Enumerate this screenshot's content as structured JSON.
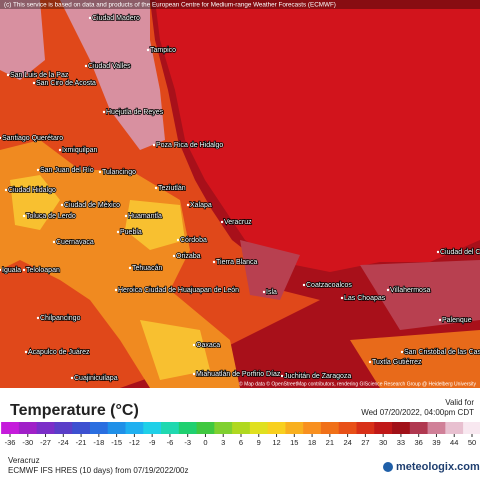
{
  "header": {
    "attribution": "(c) This service is based on data and products of the European Centre for Medium-range Weather Forecasts (ECMWF)"
  },
  "map": {
    "credit": "© Map data © OpenStreetMap contributors, rendering GIScience Research Group @ Heidelberg University",
    "places": [
      "Ciudad Madero",
      "Tampico",
      "Ciudad Valles",
      "San Luis de la Paz",
      "San Ciro de Acosta",
      "Huejutla de Reyes",
      "Santiago Querétaro",
      "Ixmiquilpan",
      "Poza Rica de Hidalgo",
      "San Juan del Río",
      "Tulancingo",
      "Teziutlán",
      "Ciudad Hidalgo",
      "Ciudad de México",
      "Huamantla",
      "Xalapa",
      "Toluca de Lerdo",
      "Veracruz",
      "Puebla",
      "Córdoba",
      "Cuernavaca",
      "Orizaba",
      "Tierra Blanca",
      "Tehuacán",
      "Iguala",
      "Teloloapan",
      "Heroica Ciudad de Huajuapan de León",
      "Isla",
      "Coatzacoalcos",
      "Las Choapas",
      "Villahermosa",
      "Ciudad del Carmen",
      "Palenque",
      "Chilpancingo",
      "Oaxaca",
      "San Cristóbal de las Casas",
      "Tuxtla Gutiérrez",
      "Acapulco de Juárez",
      "Cuajinicuilapa",
      "Miahuatlán de Porfirio Díaz",
      "Juchitán de Zaragoza"
    ]
  },
  "legend": {
    "title": "Temperature (°C)",
    "valid_label": "Valid for",
    "valid_time": "Wed 07/20/2022, 04:00pm CDT",
    "ticks": [
      -36,
      -30,
      -27,
      -24,
      -21,
      -18,
      -15,
      -12,
      -9,
      -6,
      -3,
      0,
      3,
      6,
      9,
      12,
      15,
      18,
      21,
      24,
      27,
      30,
      33,
      36,
      39,
      44,
      50
    ],
    "colors": [
      "#c51bdb",
      "#a020c8",
      "#7b2ec8",
      "#5a3ec8",
      "#3c50d0",
      "#2a6ee0",
      "#2090e8",
      "#20b0f0",
      "#20d0e8",
      "#20d8b0",
      "#20d070",
      "#40c840",
      "#80d030",
      "#b0d820",
      "#e0e020",
      "#f8d020",
      "#f8b020",
      "#f89020",
      "#f07018",
      "#e85018",
      "#d83018",
      "#c01818",
      "#a01018",
      "#b03850",
      "#d08098",
      "#e8c0d0",
      "#f8e8f0"
    ]
  },
  "footer": {
    "location": "Veracruz",
    "model": "ECMWF IFS HRES (10 days) from 07/19/2022/00z",
    "brand": "meteologix.com"
  }
}
